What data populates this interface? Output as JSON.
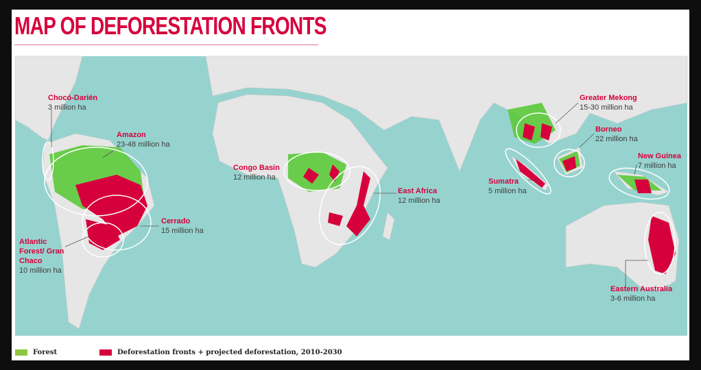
{
  "title": "MAP OF DEFORESTATION FRONTS",
  "colors": {
    "ocean": "#96d3cf",
    "land": "#e6e6e6",
    "forest": "#5cc93a",
    "front": "#d6003c",
    "title": "#d6003c"
  },
  "fronts": [
    {
      "name": "Chocó-Darién",
      "area": "3 million ha"
    },
    {
      "name": "Amazon",
      "area": "23-48 million ha"
    },
    {
      "name": "Cerrado",
      "area": "15 million ha"
    },
    {
      "name": "Atlantic Forest/ Gran Chaco",
      "area": "10 million ha"
    },
    {
      "name": "Congo Basin",
      "area": "12 million ha"
    },
    {
      "name": "East Africa",
      "area": "12 million ha"
    },
    {
      "name": "Greater Mekong",
      "area": "15-30 million ha"
    },
    {
      "name": "Borneo",
      "area": "22 million ha"
    },
    {
      "name": "Sumatra",
      "area": "5 million ha"
    },
    {
      "name": "New Guinea",
      "area": "7 million ha"
    },
    {
      "name": "Eastern Australia",
      "area": "3-6 million ha"
    }
  ],
  "legend": {
    "forest": "Forest",
    "fronts": "Deforestation fronts + projected deforestation, 2010-2030"
  }
}
